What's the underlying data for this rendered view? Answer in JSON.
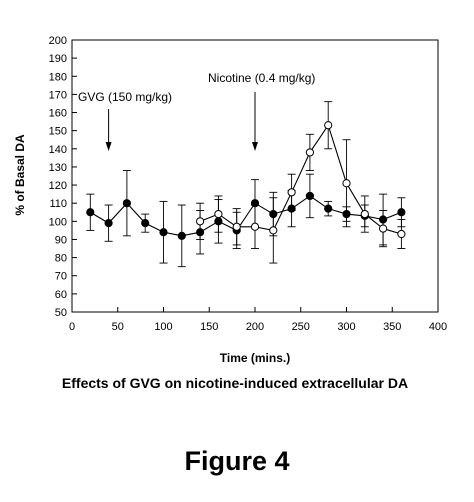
{
  "chart_data": {
    "type": "line",
    "title": "",
    "xlabel": "Time (mins.)",
    "ylabel": "% of Basal DA",
    "xlim": [
      0,
      400
    ],
    "ylim": [
      50,
      200
    ],
    "x_ticks": [
      0,
      50,
      100,
      150,
      200,
      250,
      300,
      350,
      400
    ],
    "y_ticks": [
      50,
      60,
      70,
      80,
      90,
      100,
      110,
      120,
      130,
      140,
      150,
      160,
      170,
      180,
      190,
      200
    ],
    "grid": false,
    "series": [
      {
        "marker": "filled-circle",
        "x": [
          20,
          40,
          60,
          80,
          100,
          120,
          140,
          160,
          180,
          200,
          220,
          240,
          260,
          280,
          300,
          320,
          340,
          360
        ],
        "y": [
          105,
          99,
          110,
          99,
          94,
          92,
          94,
          100,
          95,
          110,
          104,
          107,
          114,
          107,
          104,
          103,
          101,
          105
        ],
        "err": [
          10,
          10,
          18,
          5,
          17,
          17,
          12,
          12,
          10,
          13,
          12,
          10,
          12,
          4,
          4,
          6,
          14,
          8
        ]
      },
      {
        "marker": "open-circle",
        "x": [
          140,
          160,
          180,
          200,
          220,
          240,
          260,
          280,
          300,
          320,
          340,
          360
        ],
        "y": [
          100,
          104,
          97,
          97,
          95,
          116,
          138,
          153,
          121,
          104,
          96,
          93
        ],
        "err": [
          10,
          10,
          10,
          12,
          18,
          10,
          10,
          13,
          24,
          10,
          10,
          8
        ]
      }
    ],
    "annotations": [
      {
        "text": "GVG (150 mg/kg)",
        "arrow_x": 40
      },
      {
        "text": "Nicotine (0.4 mg/kg)",
        "arrow_x": 200
      }
    ]
  },
  "caption": "Effects of GVG on nicotine-induced extracellular DA",
  "figure_label": "Figure 4"
}
